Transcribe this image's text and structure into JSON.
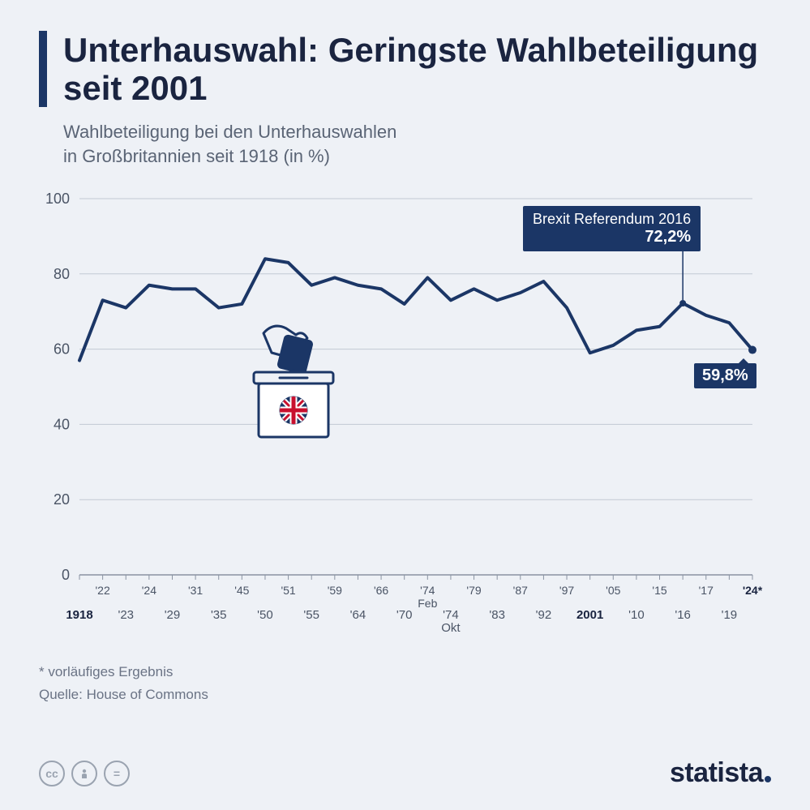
{
  "title": "Unterhauswahl: Geringste Wahlbeteiligung seit 2001",
  "subtitle": "Wahlbeteiligung bei den Unterhauswahlen\nin Großbritannien seit 1918 (in %)",
  "footnote1": "* vorläufiges Ergebnis",
  "footnote2": "Quelle: House of Commons",
  "logo": "statista",
  "chart": {
    "type": "line",
    "line_color": "#1b3666",
    "line_width": 4,
    "background_color": "#eef1f6",
    "grid_color": "#c2c9d4",
    "axis_color": "#8a93a2",
    "ylim": [
      0,
      100
    ],
    "ytick_step": 20,
    "yticks": [
      0,
      20,
      40,
      60,
      80,
      100
    ],
    "series": [
      {
        "label": "1918",
        "bold": true,
        "row": 1,
        "v": 57
      },
      {
        "label": "'22",
        "row": 0,
        "v": 73
      },
      {
        "label": "'23",
        "row": 1,
        "v": 71
      },
      {
        "label": "'24",
        "row": 0,
        "v": 77
      },
      {
        "label": "'29",
        "row": 1,
        "v": 76
      },
      {
        "label": "'31",
        "row": 0,
        "v": 76
      },
      {
        "label": "'35",
        "row": 1,
        "v": 71
      },
      {
        "label": "'45",
        "row": 0,
        "v": 72
      },
      {
        "label": "'50",
        "row": 1,
        "v": 84
      },
      {
        "label": "'51",
        "row": 0,
        "v": 83
      },
      {
        "label": "'55",
        "row": 1,
        "v": 77
      },
      {
        "label": "'59",
        "row": 0,
        "v": 79
      },
      {
        "label": "'64",
        "row": 1,
        "v": 77
      },
      {
        "label": "'66",
        "row": 0,
        "v": 76
      },
      {
        "label": "'70",
        "row": 1,
        "v": 72
      },
      {
        "label": "'74\nFeb",
        "row": 0,
        "v": 79
      },
      {
        "label": "'74\nOkt",
        "row": 1,
        "v": 73
      },
      {
        "label": "'79",
        "row": 0,
        "v": 76
      },
      {
        "label": "'83",
        "row": 1,
        "v": 73
      },
      {
        "label": "'87",
        "row": 0,
        "v": 75
      },
      {
        "label": "'92",
        "row": 1,
        "v": 78
      },
      {
        "label": "'97",
        "row": 0,
        "v": 71
      },
      {
        "label": "2001",
        "bold": true,
        "row": 1,
        "v": 59
      },
      {
        "label": "'05",
        "row": 0,
        "v": 61
      },
      {
        "label": "'10",
        "row": 1,
        "v": 65
      },
      {
        "label": "'15",
        "row": 0,
        "v": 66
      },
      {
        "label": "'16",
        "row": 1,
        "v": 72.2
      },
      {
        "label": "'17",
        "row": 0,
        "v": 69
      },
      {
        "label": "'19",
        "row": 1,
        "v": 67
      },
      {
        "label": "'24*",
        "bold": true,
        "row": 0,
        "v": 59.8
      }
    ],
    "callout": {
      "title": "Brexit Referendum 2016",
      "value": "72,2%",
      "index": 26
    },
    "end_label": {
      "value": "59,8%",
      "index": 29
    }
  }
}
